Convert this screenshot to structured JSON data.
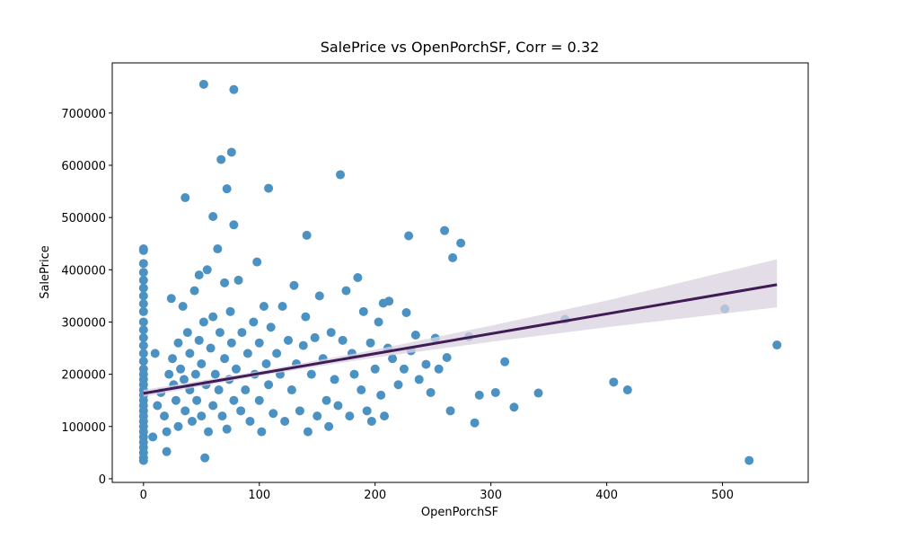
{
  "chart_data": {
    "type": "scatter",
    "title": "SalePrice vs OpenPorchSF, Corr = 0.32",
    "x_label": "OpenPorchSF",
    "y_label": "SalePrice",
    "xlim": [
      -27,
      574
    ],
    "ylim": [
      -7000,
      796000
    ],
    "xticks": [
      0,
      100,
      200,
      300,
      400,
      500
    ],
    "yticks": [
      0,
      100000,
      200000,
      300000,
      400000,
      500000,
      600000,
      700000
    ],
    "points": {
      "color": "#1f77b4",
      "x": [
        0,
        0,
        0,
        0,
        0,
        0,
        0,
        0,
        0,
        0,
        0,
        0,
        0,
        0,
        0,
        0,
        0,
        0,
        0,
        0,
        0,
        0,
        0,
        0,
        0,
        0,
        0,
        0,
        0,
        0,
        0,
        0,
        0,
        0,
        10,
        12,
        15,
        18,
        20,
        22,
        24,
        25,
        26,
        28,
        30,
        30,
        32,
        34,
        35,
        36,
        38,
        40,
        40,
        42,
        44,
        45,
        46,
        48,
        48,
        50,
        50,
        52,
        54,
        55,
        56,
        58,
        60,
        60,
        62,
        64,
        65,
        66,
        68,
        70,
        70,
        72,
        74,
        75,
        76,
        78,
        80,
        82,
        84,
        85,
        88,
        90,
        92,
        95,
        96,
        98,
        100,
        100,
        102,
        104,
        106,
        108,
        110,
        112,
        115,
        118,
        120,
        122,
        125,
        128,
        130,
        132,
        135,
        138,
        140,
        142,
        145,
        148,
        150,
        152,
        155,
        158,
        160,
        162,
        165,
        168,
        172,
        175,
        178,
        180,
        182,
        185,
        188,
        190,
        193,
        196,
        200,
        203,
        205,
        208,
        215,
        220,
        225,
        238,
        248,
        255,
        52,
        78,
        67,
        76,
        72,
        108,
        36,
        60,
        78,
        170,
        141,
        229,
        260,
        274,
        267,
        502,
        547,
        523,
        406,
        418,
        364,
        341,
        312,
        320,
        304,
        290,
        286,
        265,
        281,
        252,
        262,
        244,
        235,
        231,
        211,
        207,
        212,
        227,
        197,
        53,
        20,
        8
      ],
      "y": [
        35000,
        40000,
        50000,
        60000,
        70000,
        80000,
        90000,
        100000,
        110000,
        120000,
        130000,
        140000,
        150000,
        160000,
        170000,
        180000,
        190000,
        200000,
        210000,
        225000,
        240000,
        255000,
        270000,
        285000,
        300000,
        320000,
        335000,
        350000,
        365000,
        380000,
        395000,
        412000,
        437000,
        440000,
        240000,
        140000,
        165000,
        120000,
        90000,
        200000,
        345000,
        230000,
        180000,
        150000,
        260000,
        100000,
        210000,
        330000,
        190000,
        130000,
        280000,
        170000,
        240000,
        110000,
        360000,
        200000,
        150000,
        390000,
        265000,
        220000,
        120000,
        300000,
        180000,
        400000,
        90000,
        250000,
        140000,
        310000,
        200000,
        440000,
        170000,
        280000,
        120000,
        230000,
        375000,
        95000,
        190000,
        320000,
        260000,
        150000,
        210000,
        380000,
        130000,
        280000,
        170000,
        240000,
        110000,
        300000,
        200000,
        415000,
        150000,
        260000,
        90000,
        330000,
        220000,
        180000,
        290000,
        125000,
        240000,
        200000,
        330000,
        110000,
        265000,
        170000,
        370000,
        220000,
        130000,
        255000,
        310000,
        90000,
        200000,
        270000,
        120000,
        350000,
        230000,
        150000,
        100000,
        280000,
        190000,
        140000,
        265000,
        360000,
        120000,
        240000,
        200000,
        385000,
        170000,
        320000,
        130000,
        260000,
        210000,
        300000,
        160000,
        120000,
        230000,
        180000,
        210000,
        190000,
        165000,
        210000,
        755000,
        745000,
        611000,
        625000,
        555000,
        556000,
        538000,
        502000,
        486000,
        582000,
        466000,
        465000,
        475000,
        451000,
        423000,
        325000,
        256000,
        35000,
        185000,
        170000,
        305000,
        164000,
        224000,
        137000,
        165000,
        160000,
        107000,
        130000,
        272000,
        269000,
        232000,
        219000,
        275000,
        245000,
        250000,
        336000,
        340000,
        318000,
        110000,
        40000,
        52000,
        80000
      ]
    },
    "regression": {
      "color": "#3f1c56",
      "x": [
        0,
        547
      ],
      "y": [
        163400,
        371500
      ]
    },
    "band": {
      "color": "#d9d2e0",
      "x": [
        0,
        100,
        200,
        300,
        400,
        547
      ],
      "lower": [
        157000,
        197000,
        232000,
        262000,
        290000,
        328000
      ],
      "upper": [
        170000,
        206000,
        247000,
        293000,
        341000,
        420000
      ]
    }
  }
}
